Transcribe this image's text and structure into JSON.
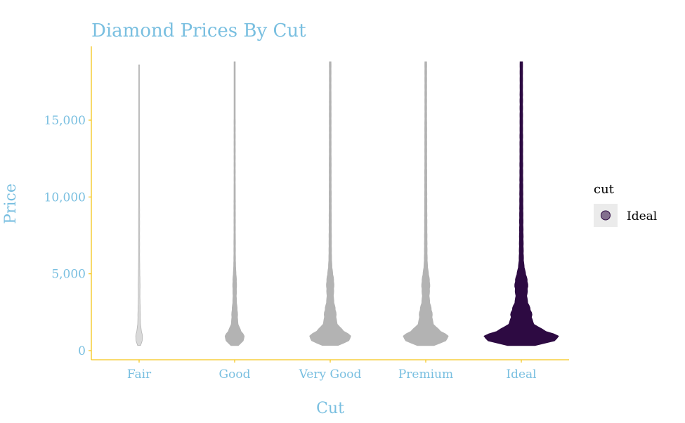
{
  "chart_data": {
    "type": "beeswarm",
    "title": "Diamond Prices By Cut",
    "xlabel": "Cut",
    "ylabel": "Price",
    "categories": [
      "Fair",
      "Good",
      "Very Good",
      "Premium",
      "Ideal"
    ],
    "y_ticks": [
      0,
      5000,
      10000,
      15000
    ],
    "y_tick_labels": [
      "0",
      "5,000",
      "10,000",
      "15,000"
    ],
    "ylim": [
      -500,
      19500
    ],
    "grid": false,
    "highlight_category": "Ideal",
    "colors": {
      "highlight": "#2d0a42",
      "other": "#b3b3b3",
      "axis": "#f5c518",
      "text": "#79bfe0"
    },
    "series": [
      {
        "category": "Fair",
        "min": 340,
        "max": 18600,
        "relative_density": 0.08
      },
      {
        "category": "Good",
        "min": 330,
        "max": 18800,
        "relative_density": 0.25
      },
      {
        "category": "Very Good",
        "min": 340,
        "max": 18800,
        "relative_density": 0.55
      },
      {
        "category": "Premium",
        "min": 330,
        "max": 18800,
        "relative_density": 0.6
      },
      {
        "category": "Ideal",
        "min": 330,
        "max": 18800,
        "relative_density": 1.0
      }
    ],
    "legend": {
      "title": "cut",
      "entries": [
        "Ideal"
      ],
      "position": "right"
    }
  }
}
